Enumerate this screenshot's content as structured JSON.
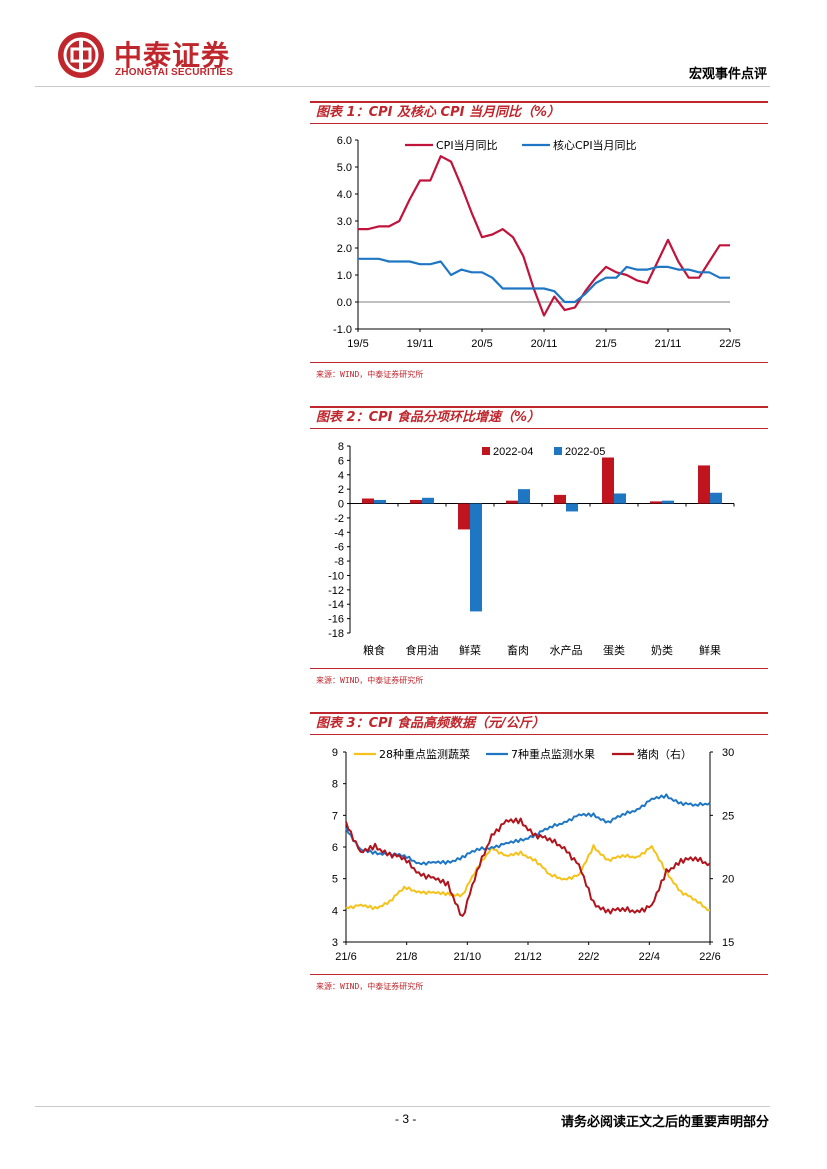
{
  "header": {
    "logo_cn": "中泰证券",
    "logo_en": "ZHONGTAI SECURITIES",
    "category": "宏观事件点评"
  },
  "colors": {
    "brand": "#c0272d",
    "series_red": "#c0143c",
    "series_blue": "#1f77c4",
    "series_yellow": "#f5c21b"
  },
  "figures": [
    {
      "title": "图表 1：CPI 及核心 CPI 当月同比（%）",
      "source": "来源：WIND，中泰证券研究所"
    },
    {
      "title": "图表 2：CPI 食品分项环比增速（%）",
      "source": "来源：WIND，中泰证券研究所"
    },
    {
      "title": "图表 3：CPI 食品高频数据（元/公斤）",
      "source": "来源：WIND，中泰证券研究所"
    }
  ],
  "chart_data": [
    {
      "type": "line",
      "title": "CPI 及核心 CPI 当月同比（%）",
      "ylim": [
        -1.0,
        6.0
      ],
      "yticks": [
        "6.0",
        "5.0",
        "4.0",
        "3.0",
        "2.0",
        "1.0",
        "0.0",
        "-1.0"
      ],
      "xticks": [
        "19/5",
        "19/11",
        "20/5",
        "20/11",
        "21/5",
        "21/11",
        "22/5"
      ],
      "series": [
        {
          "name": "CPI当月同比",
          "color": "#c0143c",
          "values": [
            2.7,
            2.7,
            2.8,
            2.8,
            3.0,
            3.8,
            4.5,
            4.5,
            5.4,
            5.2,
            4.3,
            3.3,
            2.4,
            2.5,
            2.7,
            2.4,
            1.7,
            0.5,
            -0.5,
            0.2,
            -0.3,
            -0.2,
            0.4,
            0.9,
            1.3,
            1.1,
            1.0,
            0.8,
            0.7,
            1.5,
            2.3,
            1.5,
            0.9,
            0.9,
            1.5,
            2.1,
            2.1
          ]
        },
        {
          "name": "核心CPI当月同比",
          "color": "#1f77c4",
          "values": [
            1.6,
            1.6,
            1.6,
            1.5,
            1.5,
            1.5,
            1.4,
            1.4,
            1.5,
            1.0,
            1.2,
            1.1,
            1.1,
            0.9,
            0.5,
            0.5,
            0.5,
            0.5,
            0.5,
            0.4,
            0.0,
            0.0,
            0.3,
            0.7,
            0.9,
            0.9,
            1.3,
            1.2,
            1.2,
            1.3,
            1.3,
            1.2,
            1.2,
            1.1,
            1.1,
            0.9,
            0.9
          ]
        }
      ]
    },
    {
      "type": "bar",
      "title": "CPI 食品分项环比增速（%）",
      "ylim": [
        -18,
        8
      ],
      "yticks": [
        "8",
        "6",
        "4",
        "2",
        "0",
        "-2",
        "-4",
        "-6",
        "-8",
        "-10",
        "-12",
        "-14",
        "-16",
        "-18"
      ],
      "categories": [
        "粮食",
        "食用油",
        "鲜菜",
        "畜肉",
        "水产品",
        "蛋类",
        "奶类",
        "鲜果"
      ],
      "series": [
        {
          "name": "2022-04",
          "color": "#c0141e",
          "values": [
            0.7,
            0.5,
            -3.6,
            0.4,
            1.2,
            6.4,
            0.3,
            5.3
          ]
        },
        {
          "name": "2022-05",
          "color": "#1f77c4",
          "values": [
            0.5,
            0.8,
            -15.0,
            2.0,
            -1.1,
            1.4,
            0.4,
            1.5
          ]
        }
      ]
    },
    {
      "type": "line",
      "title": "CPI 食品高频数据（元/公斤）",
      "ylim": [
        3,
        9
      ],
      "y2lim": [
        15,
        30
      ],
      "yticks": [
        "9",
        "8",
        "7",
        "6",
        "5",
        "4",
        "3"
      ],
      "y2ticks": [
        "30",
        "25",
        "20",
        "15"
      ],
      "xticks": [
        "21/6",
        "21/8",
        "21/10",
        "21/12",
        "22/2",
        "22/4",
        "22/6"
      ],
      "series": [
        {
          "name": "28种重点监测蔬菜",
          "color": "#f5c21b",
          "axis": "left",
          "values": [
            4.1,
            4.15,
            4.05,
            4.3,
            4.7,
            4.6,
            4.55,
            4.5,
            4.5,
            5.3,
            6.0,
            5.7,
            5.8,
            5.6,
            5.1,
            5.0,
            5.1,
            6.0,
            5.6,
            5.7,
            5.7,
            6.0,
            5.2,
            4.6,
            4.3,
            4.0
          ]
        },
        {
          "name": "7种重点监测水果",
          "color": "#1f77c4",
          "axis": "left",
          "values": [
            6.6,
            5.9,
            5.8,
            5.8,
            5.7,
            5.5,
            5.5,
            5.5,
            5.7,
            5.9,
            6.0,
            6.1,
            6.2,
            6.4,
            6.6,
            6.8,
            7.0,
            7.0,
            6.8,
            7.0,
            7.2,
            7.5,
            7.6,
            7.4,
            7.3,
            7.4
          ]
        },
        {
          "name": "猪肉（右）",
          "color": "#b0141c",
          "axis": "right",
          "values": [
            24.5,
            22.0,
            22.5,
            22.0,
            21.5,
            20.5,
            20.0,
            19.5,
            17.0,
            20.5,
            23.5,
            24.5,
            24.5,
            23.5,
            23.0,
            22.5,
            21.0,
            18.0,
            17.5,
            17.5,
            17.5,
            17.8,
            20.5,
            21.5,
            21.5,
            21.2
          ]
        }
      ]
    }
  ],
  "footer": {
    "page": "- 3 -",
    "disclaimer": "请务必阅读正文之后的重要声明部分"
  }
}
